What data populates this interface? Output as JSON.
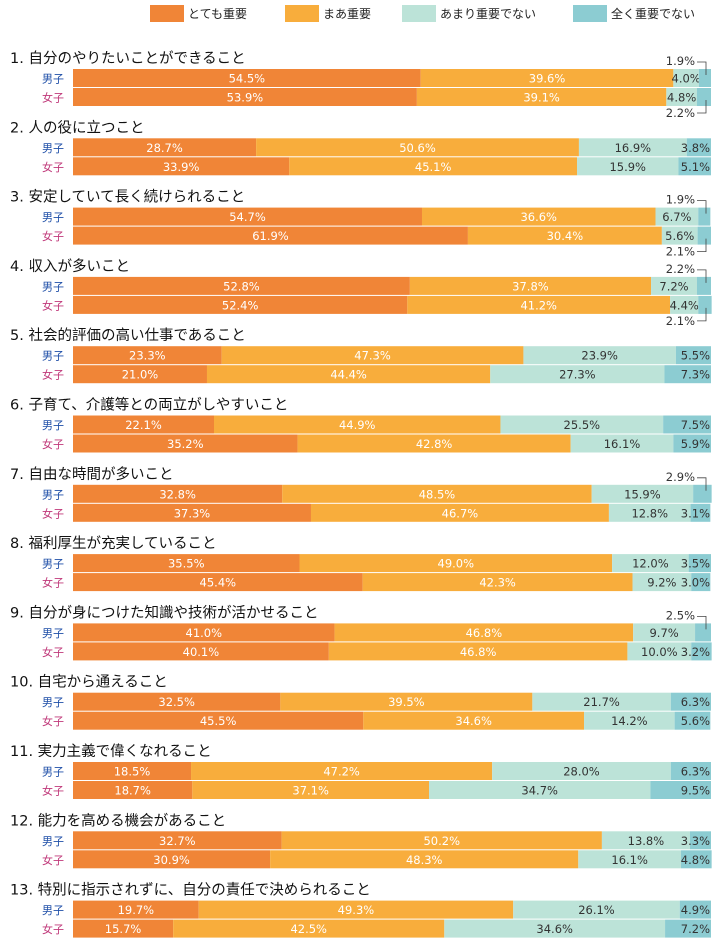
{
  "chart_data": {
    "type": "bar",
    "orientation": "horizontal",
    "stacked": true,
    "percent_stacked": true,
    "grid": false,
    "legend_placement": "top",
    "colors": [
      "#F08537",
      "#F8AD3C",
      "#BCE3D8",
      "#8CCCD2"
    ],
    "legend": [
      "とても重要",
      "まあ重要",
      "あまり重要でない",
      "全く重要でない"
    ],
    "groups": [
      {
        "label": "1.  自分のやりたいことができること",
        "rows": [
          {
            "name": "男子",
            "values": [
              54.5,
              39.6,
              4.0,
              1.9
            ]
          },
          {
            "name": "女子",
            "values": [
              53.9,
              39.1,
              4.8,
              2.2
            ]
          }
        ]
      },
      {
        "label": "2.  人の役に立つこと",
        "rows": [
          {
            "name": "男子",
            "values": [
              28.7,
              50.6,
              16.9,
              3.8
            ]
          },
          {
            "name": "女子",
            "values": [
              33.9,
              45.1,
              15.9,
              5.1
            ]
          }
        ]
      },
      {
        "label": "3.  安定していて長く続けられること",
        "rows": [
          {
            "name": "男子",
            "values": [
              54.7,
              36.6,
              6.7,
              1.9
            ]
          },
          {
            "name": "女子",
            "values": [
              61.9,
              30.4,
              5.6,
              2.1
            ]
          }
        ]
      },
      {
        "label": "4.  収入が多いこと",
        "rows": [
          {
            "name": "男子",
            "values": [
              52.8,
              37.8,
              7.2,
              2.2
            ]
          },
          {
            "name": "女子",
            "values": [
              52.4,
              41.2,
              4.4,
              2.1
            ]
          }
        ]
      },
      {
        "label": "5.  社会的評価の高い仕事であること",
        "rows": [
          {
            "name": "男子",
            "values": [
              23.3,
              47.3,
              23.9,
              5.5
            ]
          },
          {
            "name": "女子",
            "values": [
              21.0,
              44.4,
              27.3,
              7.3
            ]
          }
        ]
      },
      {
        "label": "6.  子育て、介護等との両立がしやすいこと",
        "rows": [
          {
            "name": "男子",
            "values": [
              22.1,
              44.9,
              25.5,
              7.5
            ]
          },
          {
            "name": "女子",
            "values": [
              35.2,
              42.8,
              16.1,
              5.9
            ]
          }
        ]
      },
      {
        "label": "7.  自由な時間が多いこと",
        "rows": [
          {
            "name": "男子",
            "values": [
              32.8,
              48.5,
              15.9,
              2.9
            ]
          },
          {
            "name": "女子",
            "values": [
              37.3,
              46.7,
              12.8,
              3.1
            ]
          }
        ]
      },
      {
        "label": "8.  福利厚生が充実していること",
        "rows": [
          {
            "name": "男子",
            "values": [
              35.5,
              49.0,
              12.0,
              3.5
            ]
          },
          {
            "name": "女子",
            "values": [
              45.4,
              42.3,
              9.2,
              3.0
            ]
          }
        ]
      },
      {
        "label": "9.  自分が身につけた知識や技術が活かせること",
        "rows": [
          {
            "name": "男子",
            "values": [
              41.0,
              46.8,
              9.7,
              2.5
            ]
          },
          {
            "name": "女子",
            "values": [
              40.1,
              46.8,
              10.0,
              3.2
            ]
          }
        ]
      },
      {
        "label": "10.  自宅から通えること",
        "rows": [
          {
            "name": "男子",
            "values": [
              32.5,
              39.5,
              21.7,
              6.3
            ]
          },
          {
            "name": "女子",
            "values": [
              45.5,
              34.6,
              14.2,
              5.6
            ]
          }
        ]
      },
      {
        "label": "11.  実力主義で偉くなれること",
        "rows": [
          {
            "name": "男子",
            "values": [
              18.5,
              47.2,
              28.0,
              6.3
            ]
          },
          {
            "name": "女子",
            "values": [
              18.7,
              37.1,
              34.7,
              9.5
            ]
          }
        ]
      },
      {
        "label": "12.  能力を高める機会があること",
        "rows": [
          {
            "name": "男子",
            "values": [
              32.7,
              50.2,
              13.8,
              3.3
            ]
          },
          {
            "name": "女子",
            "values": [
              30.9,
              48.3,
              16.1,
              4.8
            ]
          }
        ]
      },
      {
        "label": "13.  特別に指示されずに、自分の責任で決められること",
        "rows": [
          {
            "name": "男子",
            "values": [
              19.7,
              49.3,
              26.1,
              4.9
            ]
          },
          {
            "name": "女子",
            "values": [
              15.7,
              42.5,
              34.6,
              7.2
            ]
          }
        ]
      }
    ]
  }
}
